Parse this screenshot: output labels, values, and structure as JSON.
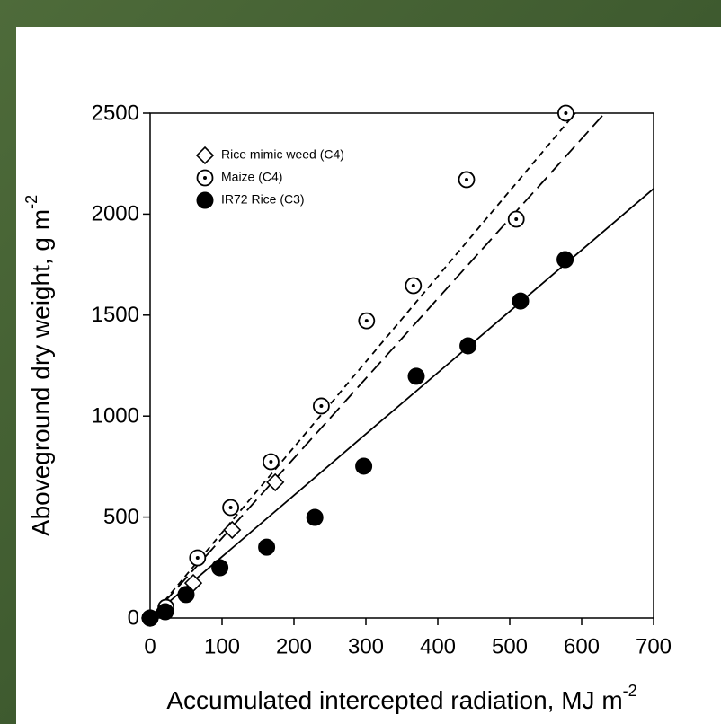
{
  "chart_data": {
    "type": "scatter",
    "x_label": "Accumulated intercepted radiation, MJ m",
    "x_label_superscript": "-2",
    "y_label": "Aboveground dry weight, g m",
    "y_label_superscript": "-2",
    "xlim": [
      0,
      700
    ],
    "ylim": [
      0,
      2500
    ],
    "xticks": [
      0,
      100,
      200,
      300,
      400,
      500,
      600,
      700
    ],
    "yticks": [
      0,
      500,
      1000,
      1500,
      2000,
      2500
    ],
    "series": [
      {
        "name": "Rice mimic weed (C4)",
        "color": "#000000",
        "marker": "diamond",
        "x": [
          0,
          60,
          114,
          174
        ],
        "values": [
          0,
          173,
          436,
          672
        ]
      },
      {
        "name": "Maize (C4)",
        "color": "#000000",
        "marker": "circle-dot",
        "x": [
          0,
          22,
          66,
          112,
          168,
          238,
          301,
          366,
          440,
          509,
          578
        ],
        "values": [
          0,
          53,
          298,
          547,
          774,
          1050,
          1472,
          1646,
          2171,
          1975,
          2500
        ]
      },
      {
        "name": "IR72 Rice (C3)",
        "color": "#000000",
        "marker": "circle",
        "x": [
          0,
          21,
          50,
          97,
          162,
          229,
          297,
          370,
          442,
          515,
          577
        ],
        "values": [
          0,
          31,
          116,
          249,
          351,
          498,
          752,
          1197,
          1348,
          1570,
          1775
        ]
      }
    ],
    "fit_lines": [
      {
        "x": [
          0,
          591
        ],
        "values": [
          0,
          2500
        ],
        "style": "short-dash"
      },
      {
        "x": [
          0,
          632
        ],
        "values": [
          0,
          2500
        ],
        "style": "long-dash"
      },
      {
        "x": [
          0,
          700
        ],
        "values": [
          0,
          2126
        ],
        "style": "solid"
      }
    ]
  }
}
